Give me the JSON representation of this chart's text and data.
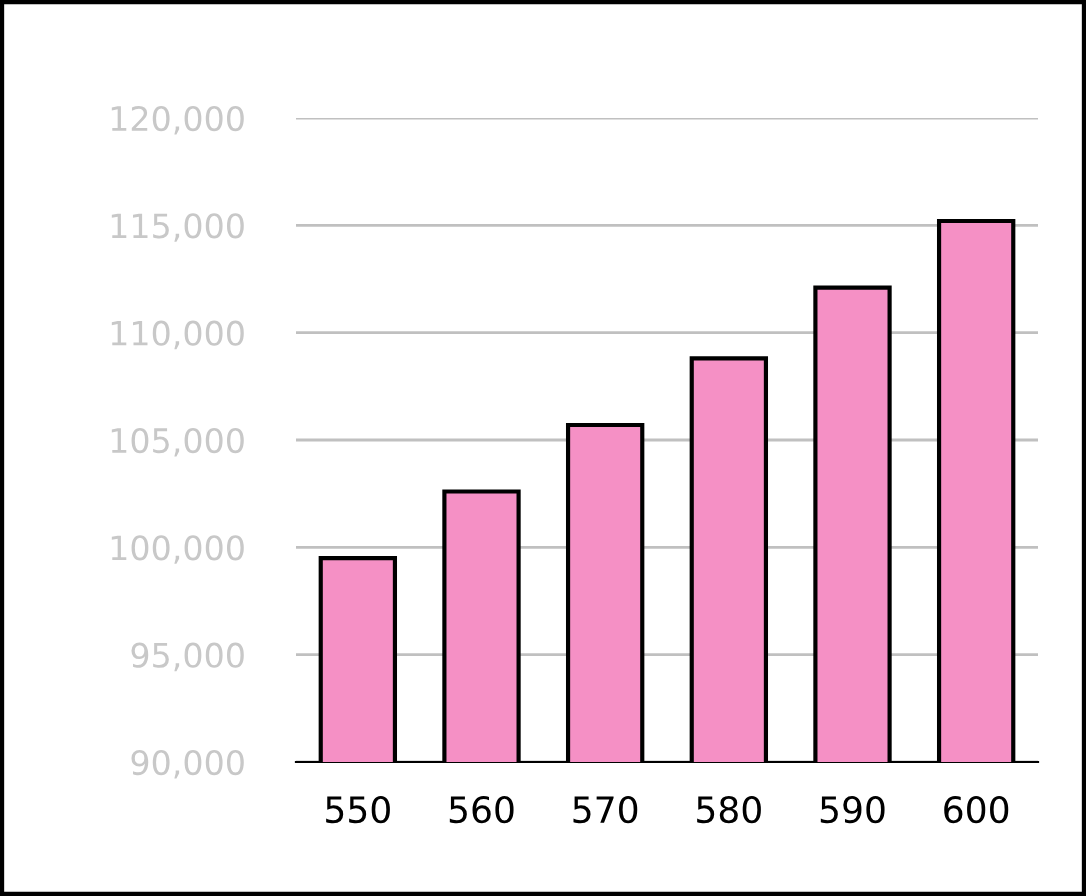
{
  "chart_data": {
    "type": "bar",
    "categories": [
      "550",
      "560",
      "570",
      "580",
      "590",
      "600"
    ],
    "values": [
      99500,
      102600,
      105700,
      108800,
      112100,
      115200
    ],
    "color": "#f590c5",
    "ylim": [
      90000,
      120000
    ],
    "yticks": [
      {
        "value": 90000,
        "label": "90,000"
      },
      {
        "value": 95000,
        "label": "95,000"
      },
      {
        "value": 100000,
        "label": "100,000"
      },
      {
        "value": 105000,
        "label": "105,000"
      },
      {
        "value": 110000,
        "label": "110,000"
      },
      {
        "value": 115000,
        "label": "115,000"
      },
      {
        "value": 120000,
        "label": "120,000"
      }
    ],
    "grid": "y"
  }
}
